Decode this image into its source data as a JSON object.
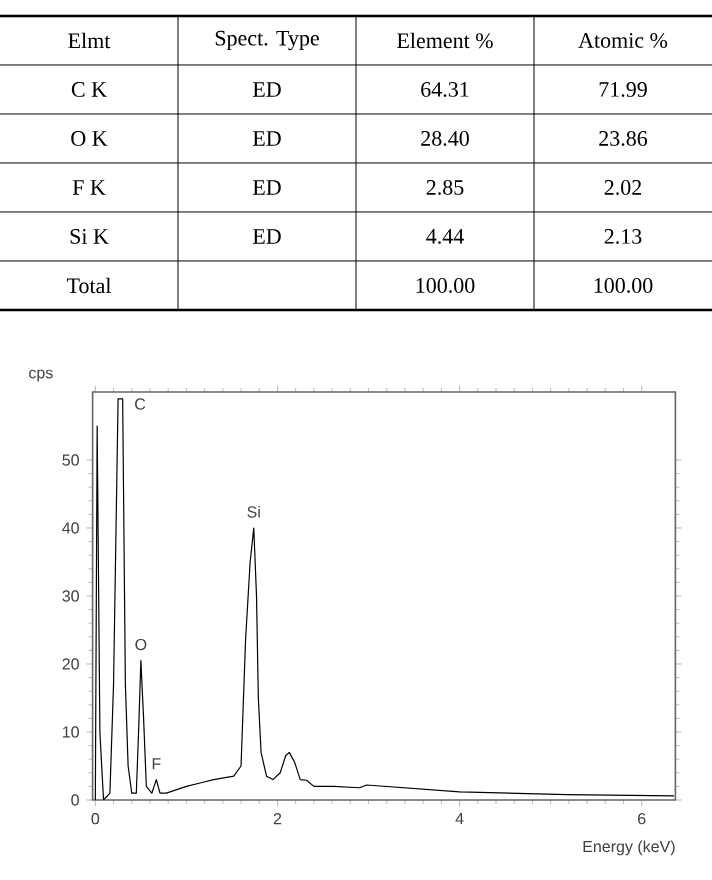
{
  "chart_data": [
    {
      "type": "heatmap",
      "ylabel": "Elmt",
      "categories": [
        "Spect.  Type",
        "Element %",
        "Atomic %"
      ],
      "y_categories": [
        "C  K",
        "O  K",
        "F  K",
        "Si  K",
        "Total"
      ],
      "cells": [
        [
          null,
          null,
          null
        ],
        [
          null,
          null,
          null
        ],
        [
          null,
          null,
          null
        ],
        [
          null,
          null,
          null
        ],
        [
          null,
          null,
          null
        ]
      ],
      "cell_labels": [
        [
          "ED",
          "64.31",
          "71.99"
        ],
        [
          "ED",
          "28.40",
          "23.86"
        ],
        [
          "ED",
          "2.85",
          "2.02"
        ],
        [
          "ED",
          "4.44",
          "2.13"
        ],
        [
          null,
          "100.00",
          "100.00"
        ]
      ]
    },
    {
      "type": "line",
      "xlabel": "Energy (keV)",
      "ylabel": "cps",
      "grid": false,
      "marker": "none",
      "line_style": "solid",
      "xlim": [
        -0.03,
        6.37
      ],
      "ylim": [
        0,
        60
      ],
      "xticks": [
        0,
        2,
        4,
        6
      ],
      "yticks": [
        0,
        10,
        20,
        30,
        40,
        50
      ],
      "x": [
        0.0,
        0.02,
        0.05,
        0.09,
        0.16,
        0.2,
        0.25,
        0.3,
        0.33,
        0.36,
        0.4,
        0.45,
        0.48,
        0.5,
        0.53,
        0.56,
        0.62,
        0.67,
        0.71,
        0.78,
        1.0,
        1.15,
        1.3,
        1.52,
        1.6,
        1.65,
        1.7,
        1.74,
        1.77,
        1.79,
        1.82,
        1.88,
        1.95,
        2.03,
        2.09,
        2.13,
        2.19,
        2.25,
        2.32,
        2.4,
        2.62,
        2.9,
        2.98,
        4.0,
        5.18,
        6.35
      ],
      "series": [
        {
          "color": "#000000",
          "values": [
            0,
            55,
            10,
            0,
            1,
            17,
            59,
            59,
            17,
            5,
            1,
            1,
            12,
            20.5,
            12,
            2,
            1,
            3,
            1,
            1,
            2,
            2.5,
            3,
            3.5,
            5,
            23.6,
            35,
            40,
            30,
            15,
            7,
            3.5,
            3,
            4,
            6.5,
            7,
            5.5,
            3,
            2.9,
            2,
            2,
            1.8,
            2.2,
            1.2,
            0.8,
            0.6
          ]
        }
      ],
      "annotations": [
        {
          "text": "C",
          "x": 0.27,
          "y": 60
        },
        {
          "text": "O",
          "x": 0.5,
          "y": 20.5
        },
        {
          "text": "F",
          "x": 0.67,
          "y": 3
        },
        {
          "text": "Si",
          "x": 1.74,
          "y": 40
        }
      ]
    }
  ]
}
